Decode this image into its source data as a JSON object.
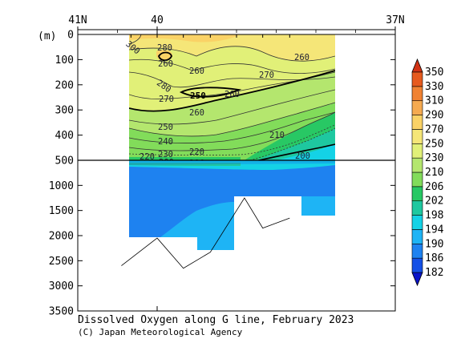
{
  "chart_data": {
    "type": "heatmap",
    "title": "Dissolved Oxygen along G line, February 2023",
    "credit": "(C) Japan Meteorological Agency",
    "y_unit_label": "(m)",
    "x_axis": {
      "ticks": [
        {
          "lat": 41,
          "label": "41N"
        },
        {
          "lat": 40,
          "label": "40"
        },
        {
          "lat": 37,
          "label": "37N"
        }
      ],
      "range": [
        41,
        37
      ],
      "station_latitudes": [
        40.33,
        40.0,
        39.67,
        39.33,
        39.0,
        38.67,
        38.33
      ]
    },
    "y_axis": {
      "upper_ticks": [
        0,
        100,
        200,
        300,
        400,
        500
      ],
      "lower_ticks": [
        500,
        1000,
        1500,
        2000,
        2500,
        3000,
        3500
      ],
      "upper_range": [
        0,
        500
      ],
      "lower_range": [
        500,
        3500
      ],
      "break_depth": 500
    },
    "colorbar": {
      "levels": [
        182,
        186,
        190,
        194,
        198,
        202,
        206,
        210,
        230,
        250,
        270,
        290,
        310,
        330,
        350
      ],
      "colors": [
        "#0a14c8",
        "#1450e6",
        "#1e82f0",
        "#1eb4f5",
        "#14d2e6",
        "#1ec8a0",
        "#28c864",
        "#82dc5a",
        "#b4e66e",
        "#e1f078",
        "#f5e678",
        "#fad266",
        "#f5aa50",
        "#f08232",
        "#e65a1e",
        "#d23214"
      ],
      "labels": [
        "350",
        "330",
        "310",
        "290",
        "270",
        "250",
        "230",
        "210",
        "206",
        "202",
        "198",
        "194",
        "190",
        "186",
        "182"
      ]
    },
    "contour_labels": [
      "300",
      "280",
      "260",
      "280",
      "270",
      "260",
      "250",
      "260",
      "270",
      "260",
      "260",
      "250",
      "240",
      "230",
      "220",
      "220",
      "210",
      "200",
      "200",
      "206",
      "200"
    ],
    "bottom_depth_profile": [
      {
        "lat": 40.45,
        "depth": 2600
      },
      {
        "lat": 40.0,
        "depth": 2050
      },
      {
        "lat": 39.67,
        "depth": 2650
      },
      {
        "lat": 39.33,
        "depth": 2330
      },
      {
        "lat": 38.9,
        "depth": 1250
      },
      {
        "lat": 38.67,
        "depth": 1850
      },
      {
        "lat": 38.33,
        "depth": 1650
      }
    ]
  }
}
